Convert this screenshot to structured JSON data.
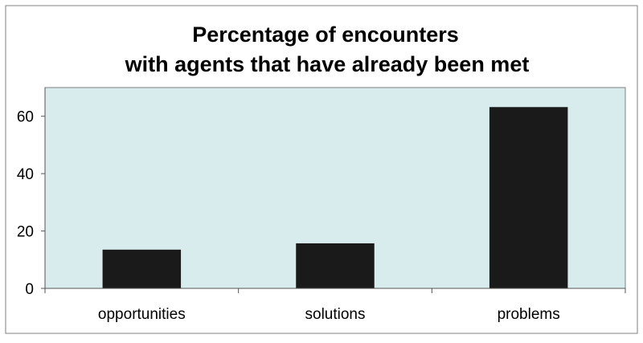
{
  "chart_data": {
    "type": "bar",
    "title_lines": [
      "Percentage of encounters",
      "with agents that have already been met"
    ],
    "categories": [
      "opportunities",
      "solutions",
      "problems"
    ],
    "values": [
      13.5,
      15.7,
      63.2
    ],
    "ylim": [
      0,
      70
    ],
    "yticks": [
      0,
      20,
      40,
      60
    ],
    "ytick_labels": [
      "0",
      "20",
      "40",
      "60"
    ],
    "xlabel": "",
    "ylabel": "",
    "grid": false,
    "legend": "none",
    "colors": {
      "plot_background": "#d9eced",
      "bar_fill": "#1a1a1a",
      "axis": "#555555",
      "outer_border": "#7f7f7f",
      "text": "#000000"
    }
  }
}
